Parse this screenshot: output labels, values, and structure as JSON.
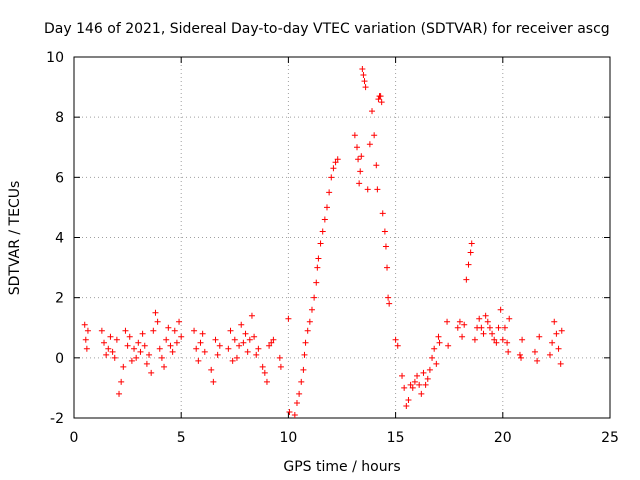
{
  "chart_data": {
    "type": "scatter",
    "title": "Day 146 of 2021, Sidereal Day-to-day VTEC variation (SDTVAR) for receiver ascg",
    "xlabel": "GPS time / hours",
    "ylabel": "SDTVAR / TECUs",
    "xlim": [
      0,
      25
    ],
    "ylim": [
      -2,
      10
    ],
    "grid": true,
    "marker": "+",
    "color": "#ff0000",
    "x_ticks": [
      0,
      5,
      10,
      15,
      20,
      25
    ],
    "y_ticks": [
      -2,
      0,
      2,
      4,
      6,
      8,
      10
    ],
    "x_tick_labels": [
      "0",
      "5",
      "10",
      "15",
      "20",
      "25"
    ],
    "y_tick_labels": [
      "-2",
      "0",
      "2",
      "4",
      "6",
      "8",
      "10"
    ],
    "series": [
      {
        "name": "SDTVAR",
        "points": [
          [
            0.5,
            1.1
          ],
          [
            0.55,
            0.6
          ],
          [
            0.6,
            0.3
          ],
          [
            0.65,
            0.9
          ],
          [
            1.3,
            0.9
          ],
          [
            1.4,
            0.5
          ],
          [
            1.5,
            0.1
          ],
          [
            1.6,
            0.3
          ],
          [
            1.7,
            0.7
          ],
          [
            1.8,
            0.2
          ],
          [
            1.9,
            0.0
          ],
          [
            2.0,
            0.6
          ],
          [
            2.1,
            -1.2
          ],
          [
            2.2,
            -0.8
          ],
          [
            2.3,
            -0.3
          ],
          [
            2.4,
            0.9
          ],
          [
            2.5,
            0.4
          ],
          [
            2.6,
            0.7
          ],
          [
            2.7,
            -0.1
          ],
          [
            2.8,
            0.3
          ],
          [
            2.9,
            0.0
          ],
          [
            3.0,
            0.5
          ],
          [
            3.1,
            0.2
          ],
          [
            3.2,
            0.8
          ],
          [
            3.3,
            0.4
          ],
          [
            3.4,
            -0.2
          ],
          [
            3.5,
            0.1
          ],
          [
            3.6,
            -0.5
          ],
          [
            3.7,
            0.9
          ],
          [
            3.8,
            1.5
          ],
          [
            3.9,
            1.2
          ],
          [
            4.0,
            0.3
          ],
          [
            4.1,
            0.0
          ],
          [
            4.2,
            -0.3
          ],
          [
            4.3,
            0.6
          ],
          [
            4.4,
            1.0
          ],
          [
            4.5,
            0.4
          ],
          [
            4.6,
            0.2
          ],
          [
            4.7,
            0.9
          ],
          [
            4.8,
            0.5
          ],
          [
            4.9,
            1.2
          ],
          [
            5.0,
            0.7
          ],
          [
            5.6,
            0.9
          ],
          [
            5.7,
            0.3
          ],
          [
            5.8,
            -0.1
          ],
          [
            5.9,
            0.5
          ],
          [
            6.0,
            0.8
          ],
          [
            6.1,
            0.2
          ],
          [
            6.4,
            -0.4
          ],
          [
            6.5,
            -0.8
          ],
          [
            6.6,
            0.6
          ],
          [
            6.7,
            0.1
          ],
          [
            6.8,
            0.4
          ],
          [
            7.2,
            0.3
          ],
          [
            7.3,
            0.9
          ],
          [
            7.4,
            -0.1
          ],
          [
            7.5,
            0.6
          ],
          [
            7.6,
            0.0
          ],
          [
            7.7,
            0.4
          ],
          [
            7.8,
            1.1
          ],
          [
            7.9,
            0.5
          ],
          [
            8.0,
            0.8
          ],
          [
            8.1,
            0.2
          ],
          [
            8.2,
            0.6
          ],
          [
            8.3,
            1.4
          ],
          [
            8.4,
            0.7
          ],
          [
            8.5,
            0.1
          ],
          [
            8.6,
            0.3
          ],
          [
            8.8,
            -0.3
          ],
          [
            8.9,
            -0.5
          ],
          [
            9.0,
            -0.8
          ],
          [
            9.1,
            0.4
          ],
          [
            9.2,
            0.5
          ],
          [
            9.3,
            0.6
          ],
          [
            9.6,
            0.0
          ],
          [
            9.65,
            -0.3
          ],
          [
            10.0,
            1.3
          ],
          [
            10.05,
            -1.8
          ],
          [
            10.3,
            -1.9
          ],
          [
            10.4,
            -1.5
          ],
          [
            10.5,
            -1.2
          ],
          [
            10.6,
            -0.8
          ],
          [
            10.7,
            -0.4
          ],
          [
            10.75,
            0.1
          ],
          [
            10.8,
            0.5
          ],
          [
            10.9,
            0.9
          ],
          [
            11.0,
            1.2
          ],
          [
            11.1,
            1.6
          ],
          [
            11.2,
            2.0
          ],
          [
            11.3,
            2.5
          ],
          [
            11.35,
            3.0
          ],
          [
            11.4,
            3.3
          ],
          [
            11.5,
            3.8
          ],
          [
            11.6,
            4.2
          ],
          [
            11.7,
            4.6
          ],
          [
            11.8,
            5.0
          ],
          [
            11.9,
            5.5
          ],
          [
            12.0,
            6.0
          ],
          [
            12.1,
            6.3
          ],
          [
            12.2,
            6.5
          ],
          [
            12.3,
            6.6
          ],
          [
            13.1,
            7.4
          ],
          [
            13.2,
            7.0
          ],
          [
            13.25,
            6.6
          ],
          [
            13.3,
            5.8
          ],
          [
            13.35,
            6.2
          ],
          [
            13.4,
            6.7
          ],
          [
            13.45,
            9.6
          ],
          [
            13.5,
            9.4
          ],
          [
            13.55,
            9.2
          ],
          [
            13.6,
            9.0
          ],
          [
            13.7,
            5.6
          ],
          [
            13.8,
            7.1
          ],
          [
            13.9,
            8.2
          ],
          [
            14.0,
            7.4
          ],
          [
            14.1,
            6.4
          ],
          [
            14.15,
            5.6
          ],
          [
            14.2,
            8.6
          ],
          [
            14.25,
            8.7
          ],
          [
            14.3,
            8.7
          ],
          [
            14.35,
            8.5
          ],
          [
            14.4,
            4.8
          ],
          [
            14.5,
            4.2
          ],
          [
            14.55,
            3.7
          ],
          [
            14.6,
            3.0
          ],
          [
            14.65,
            2.0
          ],
          [
            14.7,
            1.8
          ],
          [
            15.0,
            0.6
          ],
          [
            15.1,
            0.4
          ],
          [
            15.3,
            -0.6
          ],
          [
            15.4,
            -1.0
          ],
          [
            15.5,
            -1.6
          ],
          [
            15.6,
            -1.4
          ],
          [
            15.7,
            -0.9
          ],
          [
            15.8,
            -1.0
          ],
          [
            15.9,
            -0.8
          ],
          [
            16.0,
            -0.6
          ],
          [
            16.1,
            -0.9
          ],
          [
            16.2,
            -1.2
          ],
          [
            16.3,
            -0.5
          ],
          [
            16.4,
            -0.9
          ],
          [
            16.5,
            -0.7
          ],
          [
            16.6,
            -0.4
          ],
          [
            16.7,
            0.0
          ],
          [
            16.8,
            0.3
          ],
          [
            16.9,
            -0.2
          ],
          [
            17.0,
            0.7
          ],
          [
            17.05,
            0.5
          ],
          [
            17.4,
            1.2
          ],
          [
            17.45,
            0.4
          ],
          [
            17.9,
            1.0
          ],
          [
            18.0,
            1.2
          ],
          [
            18.1,
            0.7
          ],
          [
            18.2,
            1.1
          ],
          [
            18.3,
            2.6
          ],
          [
            18.4,
            3.1
          ],
          [
            18.5,
            3.5
          ],
          [
            18.55,
            3.8
          ],
          [
            18.7,
            0.6
          ],
          [
            18.8,
            1.0
          ],
          [
            18.9,
            1.3
          ],
          [
            19.0,
            1.0
          ],
          [
            19.1,
            0.8
          ],
          [
            19.2,
            1.4
          ],
          [
            19.3,
            1.2
          ],
          [
            19.4,
            1.0
          ],
          [
            19.5,
            0.8
          ],
          [
            19.6,
            0.6
          ],
          [
            19.7,
            0.5
          ],
          [
            19.8,
            1.0
          ],
          [
            19.9,
            1.6
          ],
          [
            20.0,
            0.6
          ],
          [
            20.1,
            1.0
          ],
          [
            20.2,
            0.5
          ],
          [
            20.25,
            0.2
          ],
          [
            20.3,
            1.3
          ],
          [
            20.8,
            0.1
          ],
          [
            20.85,
            0.0
          ],
          [
            20.9,
            0.6
          ],
          [
            21.5,
            0.2
          ],
          [
            21.6,
            -0.1
          ],
          [
            21.7,
            0.7
          ],
          [
            22.2,
            0.1
          ],
          [
            22.3,
            0.5
          ],
          [
            22.4,
            1.2
          ],
          [
            22.5,
            0.8
          ],
          [
            22.6,
            0.3
          ],
          [
            22.7,
            -0.2
          ],
          [
            22.75,
            0.9
          ]
        ]
      }
    ]
  }
}
